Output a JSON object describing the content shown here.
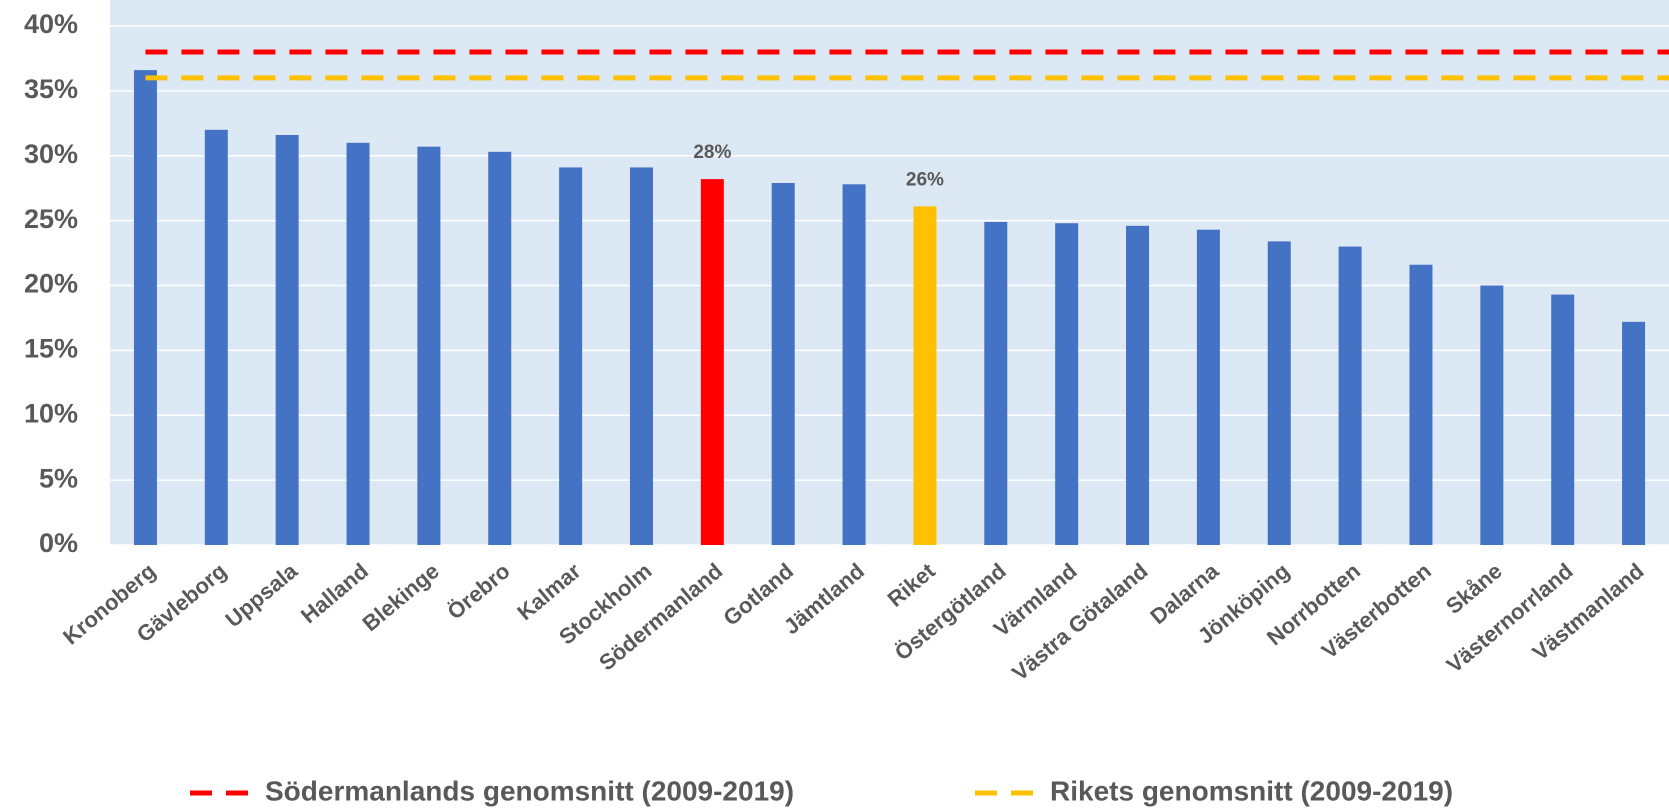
{
  "chart_data": {
    "type": "bar",
    "categories": [
      "Kronoberg",
      "Gävleborg",
      "Uppsala",
      "Halland",
      "Blekinge",
      "Örebro",
      "Kalmar",
      "Stockholm",
      "Södermanland",
      "Gotland",
      "Jämtland",
      "Riket",
      "Östergötland",
      "Värmland",
      "Västra Götaland",
      "Dalarna",
      "Jönköping",
      "Norrbotten",
      "Västerbotten",
      "Skåne",
      "Västernorrland",
      "Västmanland"
    ],
    "values": [
      36.6,
      32.0,
      31.6,
      31.0,
      30.7,
      30.3,
      29.1,
      29.1,
      28.2,
      27.9,
      27.8,
      26.1,
      24.9,
      24.8,
      24.6,
      24.3,
      23.4,
      23.0,
      21.6,
      20.0,
      19.3,
      17.2
    ],
    "value_labels": [
      null,
      null,
      null,
      null,
      null,
      null,
      null,
      null,
      "28%",
      null,
      null,
      "26%",
      null,
      null,
      null,
      null,
      null,
      null,
      null,
      null,
      null,
      null
    ],
    "colors": [
      "#4472c4",
      "#4472c4",
      "#4472c4",
      "#4472c4",
      "#4472c4",
      "#4472c4",
      "#4472c4",
      "#4472c4",
      "#ff0000",
      "#4472c4",
      "#4472c4",
      "#ffc000",
      "#4472c4",
      "#4472c4",
      "#4472c4",
      "#4472c4",
      "#4472c4",
      "#4472c4",
      "#4472c4",
      "#4472c4",
      "#4472c4",
      "#4472c4"
    ],
    "reference_lines": [
      {
        "name": "Södermanlands genomsnitt (2009-2019)",
        "color": "#ff0000",
        "value": 38.0
      },
      {
        "name": "Rikets genomsnitt (2009-2019)",
        "color": "#ffc000",
        "value": 36.0
      }
    ],
    "ylim": [
      0,
      40
    ],
    "yticks": [
      {
        "value": 0,
        "label": "0%"
      },
      {
        "value": 5,
        "label": "5%"
      },
      {
        "value": 10,
        "label": "10%"
      },
      {
        "value": 15,
        "label": "15%"
      },
      {
        "value": 20,
        "label": "20%"
      },
      {
        "value": 25,
        "label": "25%"
      },
      {
        "value": 30,
        "label": "30%"
      },
      {
        "value": 35,
        "label": "35%"
      },
      {
        "value": 40,
        "label": "40%"
      }
    ],
    "grid": true,
    "legend": "bottom"
  }
}
